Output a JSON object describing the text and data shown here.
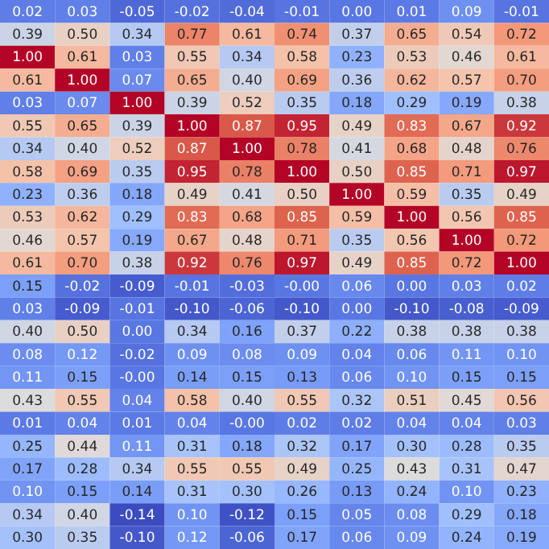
{
  "chart_data": {
    "type": "heatmap",
    "data_labels": true,
    "categories": [
      null,
      null,
      null,
      null,
      null,
      null,
      null,
      null,
      null,
      null
    ],
    "y_categories": [
      null,
      null,
      null,
      null,
      null,
      null,
      null,
      null,
      null,
      null,
      null,
      null,
      null,
      null,
      null,
      null,
      null,
      null,
      null,
      null,
      null,
      null,
      null,
      null
    ],
    "cells": [
      [
        0.02,
        0.03,
        -0.05,
        -0.02,
        -0.04,
        -0.01,
        0.0,
        0.01,
        0.09,
        -0.01
      ],
      [
        0.39,
        0.5,
        0.34,
        0.77,
        0.61,
        0.74,
        0.37,
        0.65,
        0.54,
        0.72
      ],
      [
        1.0,
        0.61,
        0.03,
        0.55,
        0.34,
        0.58,
        0.23,
        0.53,
        0.46,
        0.61
      ],
      [
        0.61,
        1.0,
        0.07,
        0.65,
        0.4,
        0.69,
        0.36,
        0.62,
        0.57,
        0.7
      ],
      [
        0.03,
        0.07,
        1.0,
        0.39,
        0.52,
        0.35,
        0.18,
        0.29,
        0.19,
        0.38
      ],
      [
        0.55,
        0.65,
        0.39,
        1.0,
        0.87,
        0.95,
        0.49,
        0.83,
        0.67,
        0.92
      ],
      [
        0.34,
        0.4,
        0.52,
        0.87,
        1.0,
        0.78,
        0.41,
        0.68,
        0.48,
        0.76
      ],
      [
        0.58,
        0.69,
        0.35,
        0.95,
        0.78,
        1.0,
        0.5,
        0.85,
        0.71,
        0.97
      ],
      [
        0.23,
        0.36,
        0.18,
        0.49,
        0.41,
        0.5,
        1.0,
        0.59,
        0.35,
        0.49
      ],
      [
        0.53,
        0.62,
        0.29,
        0.83,
        0.68,
        0.85,
        0.59,
        1.0,
        0.56,
        0.85
      ],
      [
        0.46,
        0.57,
        0.19,
        0.67,
        0.48,
        0.71,
        0.35,
        0.56,
        1.0,
        0.72
      ],
      [
        0.61,
        0.7,
        0.38,
        0.92,
        0.76,
        0.97,
        0.49,
        0.85,
        0.72,
        1.0
      ],
      [
        0.15,
        -0.02,
        -0.09,
        -0.01,
        -0.03,
        -0.0,
        0.06,
        0.0,
        0.03,
        0.02
      ],
      [
        0.03,
        -0.09,
        -0.01,
        -0.1,
        -0.06,
        -0.1,
        0.0,
        -0.1,
        -0.08,
        -0.09
      ],
      [
        0.4,
        0.5,
        0.0,
        0.34,
        0.16,
        0.37,
        0.22,
        0.38,
        0.38,
        0.38
      ],
      [
        0.08,
        0.12,
        -0.02,
        0.09,
        0.08,
        0.09,
        0.04,
        0.06,
        0.11,
        0.1
      ],
      [
        0.11,
        0.15,
        -0.0,
        0.14,
        0.15,
        0.13,
        0.06,
        0.1,
        0.15,
        0.15
      ],
      [
        0.43,
        0.55,
        0.04,
        0.58,
        0.4,
        0.55,
        0.32,
        0.51,
        0.45,
        0.56
      ],
      [
        0.01,
        0.04,
        0.01,
        0.04,
        -0.0,
        0.02,
        0.02,
        0.04,
        0.04,
        0.03
      ],
      [
        0.25,
        0.44,
        0.11,
        0.31,
        0.18,
        0.32,
        0.17,
        0.3,
        0.28,
        0.35
      ],
      [
        0.17,
        0.28,
        0.34,
        0.55,
        0.55,
        0.49,
        0.25,
        0.43,
        0.31,
        0.47
      ],
      [
        0.1,
        0.15,
        0.14,
        0.31,
        0.3,
        0.26,
        0.13,
        0.24,
        0.1,
        0.23
      ],
      [
        0.34,
        0.4,
        -0.14,
        0.1,
        -0.12,
        0.15,
        0.05,
        0.08,
        0.29,
        0.18
      ],
      [
        0.3,
        0.35,
        -0.1,
        0.12,
        -0.06,
        0.17,
        0.06,
        0.09,
        0.24,
        0.19
      ]
    ],
    "cell_labels": [
      [
        "0.02",
        "0.03",
        "-0.05",
        "-0.02",
        "-0.04",
        "-0.01",
        "0.00",
        "0.01",
        "0.09",
        "-0.01"
      ],
      [
        "0.39",
        "0.50",
        "0.34",
        "0.77",
        "0.61",
        "0.74",
        "0.37",
        "0.65",
        "0.54",
        "0.72"
      ],
      [
        "1.00",
        "0.61",
        "0.03",
        "0.55",
        "0.34",
        "0.58",
        "0.23",
        "0.53",
        "0.46",
        "0.61"
      ],
      [
        "0.61",
        "1.00",
        "0.07",
        "0.65",
        "0.40",
        "0.69",
        "0.36",
        "0.62",
        "0.57",
        "0.70"
      ],
      [
        "0.03",
        "0.07",
        "1.00",
        "0.39",
        "0.52",
        "0.35",
        "0.18",
        "0.29",
        "0.19",
        "0.38"
      ],
      [
        "0.55",
        "0.65",
        "0.39",
        "1.00",
        "0.87",
        "0.95",
        "0.49",
        "0.83",
        "0.67",
        "0.92"
      ],
      [
        "0.34",
        "0.40",
        "0.52",
        "0.87",
        "1.00",
        "0.78",
        "0.41",
        "0.68",
        "0.48",
        "0.76"
      ],
      [
        "0.58",
        "0.69",
        "0.35",
        "0.95",
        "0.78",
        "1.00",
        "0.50",
        "0.85",
        "0.71",
        "0.97"
      ],
      [
        "0.23",
        "0.36",
        "0.18",
        "0.49",
        "0.41",
        "0.50",
        "1.00",
        "0.59",
        "0.35",
        "0.49"
      ],
      [
        "0.53",
        "0.62",
        "0.29",
        "0.83",
        "0.68",
        "0.85",
        "0.59",
        "1.00",
        "0.56",
        "0.85"
      ],
      [
        "0.46",
        "0.57",
        "0.19",
        "0.67",
        "0.48",
        "0.71",
        "0.35",
        "0.56",
        "1.00",
        "0.72"
      ],
      [
        "0.61",
        "0.70",
        "0.38",
        "0.92",
        "0.76",
        "0.97",
        "0.49",
        "0.85",
        "0.72",
        "1.00"
      ],
      [
        "0.15",
        "-0.02",
        "-0.09",
        "-0.01",
        "-0.03",
        "-0.00",
        "0.06",
        "0.00",
        "0.03",
        "0.02"
      ],
      [
        "0.03",
        "-0.09",
        "-0.01",
        "-0.10",
        "-0.06",
        "-0.10",
        "0.00",
        "-0.10",
        "-0.08",
        "-0.09"
      ],
      [
        "0.40",
        "0.50",
        "0.00",
        "0.34",
        "0.16",
        "0.37",
        "0.22",
        "0.38",
        "0.38",
        "0.38"
      ],
      [
        "0.08",
        "0.12",
        "-0.02",
        "0.09",
        "0.08",
        "0.09",
        "0.04",
        "0.06",
        "0.11",
        "0.10"
      ],
      [
        "0.11",
        "0.15",
        "-0.00",
        "0.14",
        "0.15",
        "0.13",
        "0.06",
        "0.10",
        "0.15",
        "0.15"
      ],
      [
        "0.43",
        "0.55",
        "0.04",
        "0.58",
        "0.40",
        "0.55",
        "0.32",
        "0.51",
        "0.45",
        "0.56"
      ],
      [
        "0.01",
        "0.04",
        "0.01",
        "0.04",
        "-0.00",
        "0.02",
        "0.02",
        "0.04",
        "0.04",
        "0.03"
      ],
      [
        "0.25",
        "0.44",
        "0.11",
        "0.31",
        "0.18",
        "0.32",
        "0.17",
        "0.30",
        "0.28",
        "0.35"
      ],
      [
        "0.17",
        "0.28",
        "0.34",
        "0.55",
        "0.55",
        "0.49",
        "0.25",
        "0.43",
        "0.31",
        "0.47"
      ],
      [
        "0.10",
        "0.15",
        "0.14",
        "0.31",
        "0.30",
        "0.26",
        "0.13",
        "0.24",
        "0.10",
        "0.23"
      ],
      [
        "0.34",
        "0.40",
        "-0.14",
        "0.10",
        "-0.12",
        "0.15",
        "0.05",
        "0.08",
        "0.29",
        "0.18"
      ],
      [
        "0.30",
        "0.35",
        "-0.10",
        "0.12",
        "-0.06",
        "0.17",
        "0.06",
        "0.09",
        "0.24",
        "0.19"
      ]
    ]
  }
}
